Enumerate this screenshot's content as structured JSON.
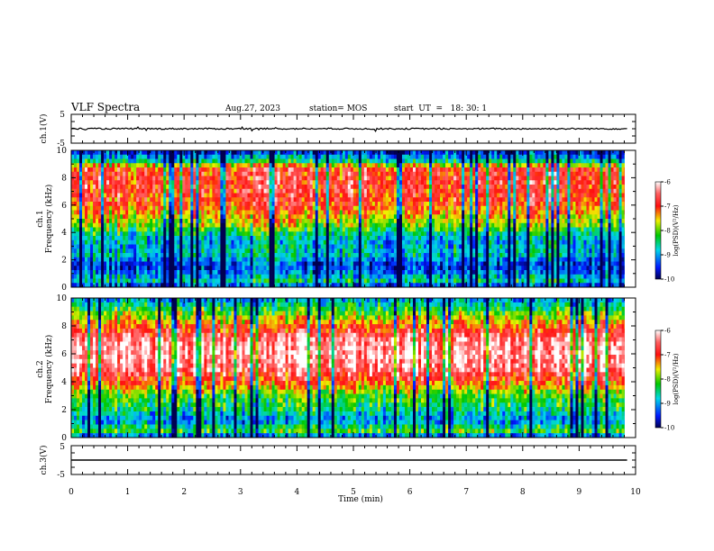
{
  "header": {
    "title": "VLF Spectra",
    "date": "Aug.27, 2023",
    "station": "station= MOS",
    "start": "start  UT  =   18: 30: 1"
  },
  "colors": {
    "low": "#000050",
    "blue": "#0018ff",
    "cyan": "#00d8e8",
    "green": "#00c800",
    "yellow": "#f0f000",
    "red": "#ff1010",
    "white": "#ffffff",
    "trace": "#000000"
  },
  "chart_data": [
    {
      "type": "line",
      "panel": "ch1-waveform",
      "ylabel": "ch.1(V)",
      "xlim": [
        0,
        10
      ],
      "ylim": [
        -5,
        5
      ],
      "yticks": [
        "5",
        "-5"
      ],
      "trace_level": 0,
      "data_end": 9.85
    },
    {
      "type": "heatmap",
      "panel": "ch1-spectrogram",
      "ylabel": "Frequency (kHz)",
      "ylabel_channel": "ch.1",
      "xlim": [
        0,
        10
      ],
      "ylim": [
        0,
        10
      ],
      "yticks": [
        "0",
        "2",
        "4",
        "6",
        "8",
        "10"
      ],
      "data_end": 9.85,
      "band_profile": [
        {
          "f": 0.0,
          "level": 0.05
        },
        {
          "f": 0.4,
          "level": 0.35
        },
        {
          "f": 1.0,
          "level": 0.2
        },
        {
          "f": 1.6,
          "level": 0.1
        },
        {
          "f": 2.4,
          "level": 0.3
        },
        {
          "f": 3.5,
          "level": 0.25
        },
        {
          "f": 4.5,
          "level": 0.5
        },
        {
          "f": 6.0,
          "level": 0.72
        },
        {
          "f": 7.5,
          "level": 0.78
        },
        {
          "f": 8.7,
          "level": 0.75
        },
        {
          "f": 9.2,
          "level": 0.35
        },
        {
          "f": 10.0,
          "level": 0.05
        }
      ],
      "colorbar": {
        "label": "log(PSD)(V²/Hz)",
        "ticks": [
          "-6",
          "-7",
          "-8",
          "-9",
          "-10"
        ],
        "range": [
          -10,
          -6
        ]
      }
    },
    {
      "type": "heatmap",
      "panel": "ch2-spectrogram",
      "ylabel": "Frequency (kHz)",
      "ylabel_channel": "ch.2",
      "xlim": [
        0,
        10
      ],
      "ylim": [
        0,
        10
      ],
      "yticks": [
        "0",
        "2",
        "4",
        "6",
        "8",
        "10"
      ],
      "data_end": 9.85,
      "band_profile": [
        {
          "f": 0.0,
          "level": 0.1
        },
        {
          "f": 0.5,
          "level": 0.45
        },
        {
          "f": 1.2,
          "level": 0.2
        },
        {
          "f": 2.0,
          "level": 0.35
        },
        {
          "f": 3.0,
          "level": 0.45
        },
        {
          "f": 4.0,
          "level": 0.7
        },
        {
          "f": 5.0,
          "level": 0.88
        },
        {
          "f": 6.0,
          "level": 0.93
        },
        {
          "f": 7.0,
          "level": 0.88
        },
        {
          "f": 8.0,
          "level": 0.68
        },
        {
          "f": 9.0,
          "level": 0.45
        },
        {
          "f": 10.0,
          "level": 0.2
        }
      ],
      "colorbar": {
        "label": "log(PSD)(V²/Hz)",
        "ticks": [
          "-6",
          "-7",
          "-8",
          "-9",
          "-10"
        ],
        "range": [
          -10,
          -6
        ]
      }
    },
    {
      "type": "line",
      "panel": "ch3-waveform",
      "ylabel": "ch.3(V)",
      "xlim": [
        0,
        10
      ],
      "ylim": [
        -5,
        5
      ],
      "yticks": [
        "5",
        "-5"
      ],
      "trace_level": 0,
      "data_end": 9.85
    }
  ],
  "xaxis": {
    "label": "Time (min)",
    "ticks": [
      "0",
      "1",
      "2",
      "3",
      "4",
      "5",
      "6",
      "7",
      "8",
      "9",
      "10"
    ]
  }
}
